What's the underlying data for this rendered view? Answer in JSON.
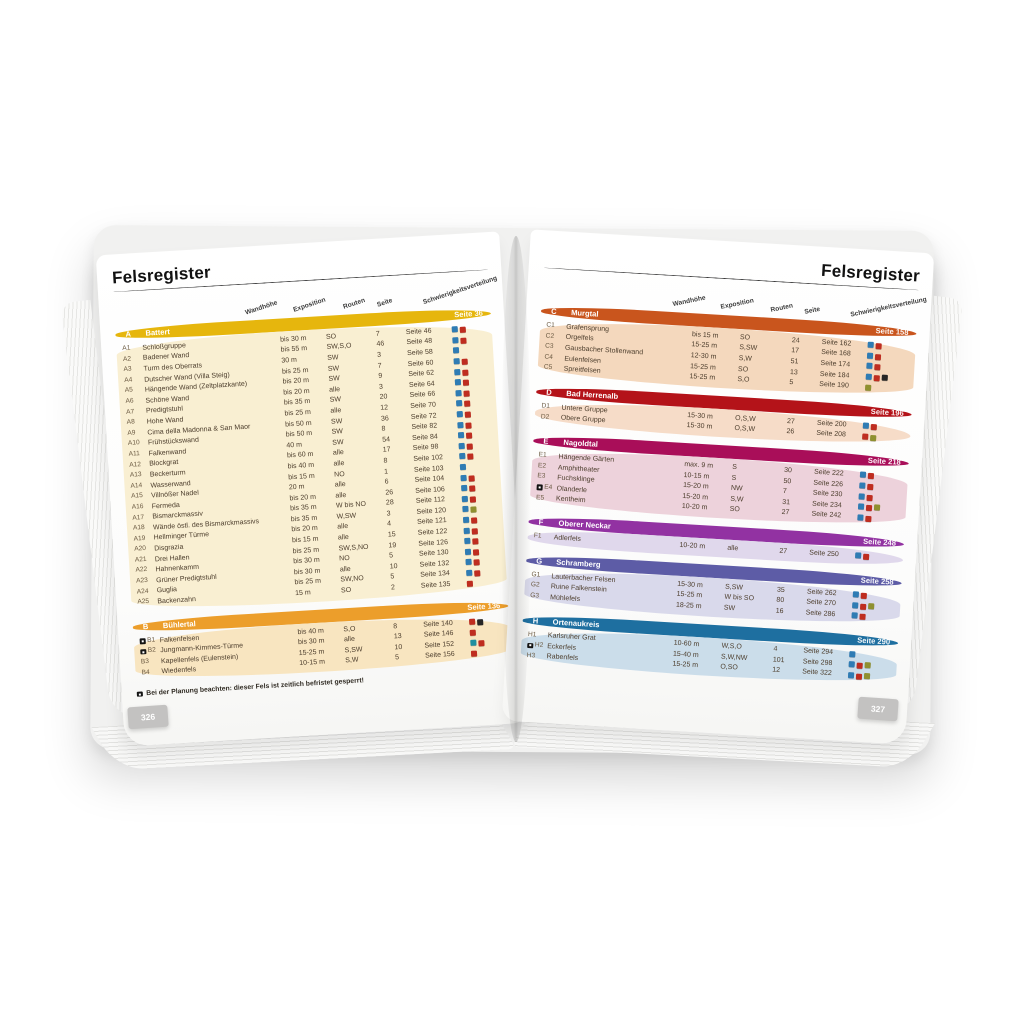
{
  "book": {
    "title_left": "Felsregister",
    "title_right": "Felsregister",
    "page_number_left": "326",
    "page_number_right": "327",
    "columns": [
      "Wandhöhe",
      "Exposition",
      "Routen",
      "Seite",
      "Schwierigkeitsverteilung"
    ],
    "footnote": "Bei der Planung beachten: dieser Fels ist zeitlich befristet gesperrt!"
  },
  "palette": {
    "difficulty": {
      "blue": "#2f7cb4",
      "red": "#bf2d20",
      "olive": "#8f9030",
      "teal": "#1f8fa0",
      "black": "#262626"
    },
    "tab_gray": "#c3c2c1"
  },
  "left_sections": [
    {
      "id": "A",
      "name": "Battert",
      "seite": "Seite 36",
      "band_color": "#e6b60d",
      "bg_color": "#f9efd2",
      "rows": [
        {
          "code": "A1",
          "name": "Schloßgruppe",
          "hoehe": "bis 30 m",
          "expo": "SO",
          "routen": "7",
          "seite": "Seite 46",
          "diff": [
            "blue",
            "red"
          ],
          "restricted": false
        },
        {
          "code": "A2",
          "name": "Badener Wand",
          "hoehe": "bis 55 m",
          "expo": "SW,S,O",
          "routen": "46",
          "seite": "Seite 48",
          "diff": [
            "blue",
            "red"
          ],
          "restricted": false
        },
        {
          "code": "A3",
          "name": "Turm des Oberrats",
          "hoehe": "30 m",
          "expo": "SW",
          "routen": "3",
          "seite": "Seite 58",
          "diff": [
            "blue"
          ],
          "restricted": false
        },
        {
          "code": "A4",
          "name": "Dutscher Wand (Villa Steig)",
          "hoehe": "bis 25 m",
          "expo": "SW",
          "routen": "7",
          "seite": "Seite 60",
          "diff": [
            "blue",
            "red"
          ],
          "restricted": false
        },
        {
          "code": "A5",
          "name": "Hängende Wand (Zeltplatzkante)",
          "hoehe": "bis 20 m",
          "expo": "SW",
          "routen": "9",
          "seite": "Seite 62",
          "diff": [
            "blue",
            "red"
          ],
          "restricted": false
        },
        {
          "code": "A6",
          "name": "Schöne Wand",
          "hoehe": "bis 20 m",
          "expo": "alle",
          "routen": "3",
          "seite": "Seite 64",
          "diff": [
            "blue",
            "red"
          ],
          "restricted": false
        },
        {
          "code": "A7",
          "name": "Predigtstuhl",
          "hoehe": "bis 35 m",
          "expo": "SW",
          "routen": "20",
          "seite": "Seite 66",
          "diff": [
            "blue",
            "red"
          ],
          "restricted": false
        },
        {
          "code": "A8",
          "name": "Hohe Wand",
          "hoehe": "bis 25 m",
          "expo": "alle",
          "routen": "12",
          "seite": "Seite 70",
          "diff": [
            "blue",
            "red"
          ],
          "restricted": false
        },
        {
          "code": "A9",
          "name": "Cima della Madonna & San Maor",
          "hoehe": "bis 50 m",
          "expo": "SW",
          "routen": "36",
          "seite": "Seite 72",
          "diff": [
            "blue",
            "red"
          ],
          "restricted": false
        },
        {
          "code": "A10",
          "name": "Frühstückswand",
          "hoehe": "bis 50 m",
          "expo": "SW",
          "routen": "8",
          "seite": "Seite 82",
          "diff": [
            "blue",
            "red"
          ],
          "restricted": false
        },
        {
          "code": "A11",
          "name": "Falkenwand",
          "hoehe": "40 m",
          "expo": "SW",
          "routen": "54",
          "seite": "Seite 84",
          "diff": [
            "blue",
            "red"
          ],
          "restricted": false
        },
        {
          "code": "A12",
          "name": "Blockgrat",
          "hoehe": "bis 60 m",
          "expo": "alle",
          "routen": "17",
          "seite": "Seite 98",
          "diff": [
            "blue",
            "red"
          ],
          "restricted": false
        },
        {
          "code": "A13",
          "name": "Beckerturm",
          "hoehe": "bis 40 m",
          "expo": "alle",
          "routen": "8",
          "seite": "Seite 102",
          "diff": [
            "blue",
            "red"
          ],
          "restricted": false
        },
        {
          "code": "A14",
          "name": "Wasserwand",
          "hoehe": "bis 15 m",
          "expo": "NO",
          "routen": "1",
          "seite": "Seite 103",
          "diff": [
            "blue"
          ],
          "restricted": false
        },
        {
          "code": "A15",
          "name": "Villnößer Nadel",
          "hoehe": "20 m",
          "expo": "alle",
          "routen": "6",
          "seite": "Seite 104",
          "diff": [
            "blue",
            "red"
          ],
          "restricted": false
        },
        {
          "code": "A16",
          "name": "Fermeda",
          "hoehe": "bis 20 m",
          "expo": "alle",
          "routen": "26",
          "seite": "Seite 106",
          "diff": [
            "blue",
            "red"
          ],
          "restricted": false
        },
        {
          "code": "A17",
          "name": "Bismarckmassiv",
          "hoehe": "bis 35 m",
          "expo": "W bis NO",
          "routen": "28",
          "seite": "Seite 112",
          "diff": [
            "blue",
            "red"
          ],
          "restricted": false
        },
        {
          "code": "A18",
          "name": "Wände östl. des Bismarckmassivs",
          "hoehe": "bis 35 m",
          "expo": "W,SW",
          "routen": "3",
          "seite": "Seite 120",
          "diff": [
            "blue",
            "olive"
          ],
          "restricted": false
        },
        {
          "code": "A19",
          "name": "Hellminger Türme",
          "hoehe": "bis 20 m",
          "expo": "alle",
          "routen": "4",
          "seite": "Seite 121",
          "diff": [
            "blue",
            "red"
          ],
          "restricted": false
        },
        {
          "code": "A20",
          "name": "Disgrazia",
          "hoehe": "bis 15 m",
          "expo": "alle",
          "routen": "15",
          "seite": "Seite 122",
          "diff": [
            "blue",
            "red"
          ],
          "restricted": false
        },
        {
          "code": "A21",
          "name": "Drei Hallen",
          "hoehe": "bis 25 m",
          "expo": "SW,S,NO",
          "routen": "19",
          "seite": "Seite 126",
          "diff": [
            "blue",
            "red"
          ],
          "restricted": false
        },
        {
          "code": "A22",
          "name": "Hahnenkamm",
          "hoehe": "bis 30 m",
          "expo": "NO",
          "routen": "5",
          "seite": "Seite 130",
          "diff": [
            "blue",
            "red"
          ],
          "restricted": false
        },
        {
          "code": "A23",
          "name": "Grüner Predigtstuhl",
          "hoehe": "bis 30 m",
          "expo": "alle",
          "routen": "10",
          "seite": "Seite 132",
          "diff": [
            "blue",
            "red"
          ],
          "restricted": false
        },
        {
          "code": "A24",
          "name": "Guglia",
          "hoehe": "bis 25 m",
          "expo": "SW,NO",
          "routen": "5",
          "seite": "Seite 134",
          "diff": [
            "blue",
            "red"
          ],
          "restricted": false
        },
        {
          "code": "A25",
          "name": "Backenzahn",
          "hoehe": "15 m",
          "expo": "SO",
          "routen": "2",
          "seite": "Seite 135",
          "diff": [
            "red"
          ],
          "restricted": false
        }
      ]
    },
    {
      "id": "B",
      "name": "Bühlertal",
      "seite": "Seite 136",
      "band_color": "#ec9e2b",
      "bg_color": "#f8e5c0",
      "rows": [
        {
          "code": "B1",
          "name": "Falkenfelsen",
          "hoehe": "bis 40 m",
          "expo": "S,O",
          "routen": "8",
          "seite": "Seite 140",
          "diff": [
            "red",
            "black"
          ],
          "restricted": true
        },
        {
          "code": "B2",
          "name": "Jungmann-Kimmes-Türme",
          "hoehe": "bis 30 m",
          "expo": "alle",
          "routen": "13",
          "seite": "Seite 146",
          "diff": [
            "red"
          ],
          "restricted": true
        },
        {
          "code": "B3",
          "name": "Kapellenfels (Eulenstein)",
          "hoehe": "15-25 m",
          "expo": "S,SW",
          "routen": "10",
          "seite": "Seite 152",
          "diff": [
            "teal",
            "red"
          ],
          "restricted": false
        },
        {
          "code": "B4",
          "name": "Wiedenfels",
          "hoehe": "10-15 m",
          "expo": "S,W",
          "routen": "5",
          "seite": "Seite 156",
          "diff": [
            "red"
          ],
          "restricted": false
        }
      ]
    }
  ],
  "right_sections": [
    {
      "id": "C",
      "name": "Murgtal",
      "seite": "Seite 158",
      "band_color": "#c9551d",
      "bg_color": "#f4d8bd",
      "rows": [
        {
          "code": "C1",
          "name": "Grafensprung",
          "hoehe": "bis 15 m",
          "expo": "SO",
          "routen": "24",
          "seite": "Seite 162",
          "diff": [
            "blue",
            "red"
          ],
          "restricted": false
        },
        {
          "code": "C2",
          "name": "Orgelfels",
          "hoehe": "15-25 m",
          "expo": "S,SW",
          "routen": "17",
          "seite": "Seite 168",
          "diff": [
            "blue",
            "red"
          ],
          "restricted": false
        },
        {
          "code": "C3",
          "name": "Gausbacher Stollenwand",
          "hoehe": "12-30 m",
          "expo": "S,W",
          "routen": "51",
          "seite": "Seite 174",
          "diff": [
            "blue",
            "red"
          ],
          "restricted": false
        },
        {
          "code": "C4",
          "name": "Eulenfelsen",
          "hoehe": "15-25 m",
          "expo": "SO",
          "routen": "13",
          "seite": "Seite 184",
          "diff": [
            "blue",
            "red",
            "black"
          ],
          "restricted": false
        },
        {
          "code": "C5",
          "name": "Spreitfelsen",
          "hoehe": "15-25 m",
          "expo": "S,O",
          "routen": "5",
          "seite": "Seite 190",
          "diff": [
            "olive"
          ],
          "restricted": false
        }
      ]
    },
    {
      "id": "D",
      "name": "Bad Herrenalb",
      "seite": "Seite 196",
      "band_color": "#b41319",
      "bg_color": "#f6dcc8",
      "rows": [
        {
          "code": "D1",
          "name": "Untere Gruppe",
          "hoehe": "15-30 m",
          "expo": "O,S,W",
          "routen": "27",
          "seite": "Seite 200",
          "diff": [
            "blue",
            "red"
          ],
          "restricted": false
        },
        {
          "code": "D2",
          "name": "Obere Gruppe",
          "hoehe": "15-30 m",
          "expo": "O,S,W",
          "routen": "26",
          "seite": "Seite 208",
          "diff": [
            "red",
            "olive"
          ],
          "restricted": false
        }
      ]
    },
    {
      "id": "E",
      "name": "Nagoldtal",
      "seite": "Seite 218",
      "band_color": "#a90e59",
      "bg_color": "#edd2db",
      "rows": [
        {
          "code": "E1",
          "name": "Hängende Gärten",
          "hoehe": "max. 9 m",
          "expo": "S",
          "routen": "30",
          "seite": "Seite 222",
          "diff": [
            "blue",
            "red"
          ],
          "restricted": false
        },
        {
          "code": "E2",
          "name": "Amphitheater",
          "hoehe": "10-15 m",
          "expo": "S",
          "routen": "50",
          "seite": "Seite 226",
          "diff": [
            "blue",
            "red"
          ],
          "restricted": false
        },
        {
          "code": "E3",
          "name": "Fuchsklinge",
          "hoehe": "15-20 m",
          "expo": "NW",
          "routen": "7",
          "seite": "Seite 230",
          "diff": [
            "blue",
            "red"
          ],
          "restricted": false
        },
        {
          "code": "E4",
          "name": "Olanderle",
          "hoehe": "15-20 m",
          "expo": "S,W",
          "routen": "31",
          "seite": "Seite 234",
          "diff": [
            "blue",
            "red",
            "olive"
          ],
          "restricted": true
        },
        {
          "code": "E5",
          "name": "Kentheim",
          "hoehe": "10-20 m",
          "expo": "SO",
          "routen": "27",
          "seite": "Seite 242",
          "diff": [
            "blue",
            "red"
          ],
          "restricted": false
        }
      ]
    },
    {
      "id": "F",
      "name": "Oberer Neckar",
      "seite": "Seite 248",
      "band_color": "#9232a2",
      "bg_color": "#e0d8ec",
      "rows": [
        {
          "code": "F1",
          "name": "Adlerfels",
          "hoehe": "10-20 m",
          "expo": "alle",
          "routen": "27",
          "seite": "Seite 250",
          "diff": [
            "blue",
            "red"
          ],
          "restricted": false
        }
      ]
    },
    {
      "id": "G",
      "name": "Schramberg",
      "seite": "Seite 258",
      "band_color": "#5d5ca6",
      "bg_color": "#d9d9eb",
      "rows": [
        {
          "code": "G1",
          "name": "Lauterbacher Felsen",
          "hoehe": "15-30 m",
          "expo": "S,SW",
          "routen": "35",
          "seite": "Seite 262",
          "diff": [
            "blue",
            "red"
          ],
          "restricted": false
        },
        {
          "code": "G2",
          "name": "Ruine Falkenstein",
          "hoehe": "15-25 m",
          "expo": "W bis SO",
          "routen": "80",
          "seite": "Seite 270",
          "diff": [
            "blue",
            "red",
            "olive"
          ],
          "restricted": false
        },
        {
          "code": "G3",
          "name": "Mühlefels",
          "hoehe": "18-25 m",
          "expo": "SW",
          "routen": "16",
          "seite": "Seite 286",
          "diff": [
            "blue",
            "red"
          ],
          "restricted": false
        }
      ]
    },
    {
      "id": "H",
      "name": "Ortenaukreis",
      "seite": "Seite 290",
      "band_color": "#1e6fa0",
      "bg_color": "#cbddea",
      "rows": [
        {
          "code": "H1",
          "name": "Karlsruher Grat",
          "hoehe": "10-60 m",
          "expo": "W,S,O",
          "routen": "4",
          "seite": "Seite 294",
          "diff": [
            "blue"
          ],
          "restricted": false
        },
        {
          "code": "H2",
          "name": "Eckerfels",
          "hoehe": "15-40 m",
          "expo": "S,W,NW",
          "routen": "101",
          "seite": "Seite 298",
          "diff": [
            "blue",
            "red",
            "olive"
          ],
          "restricted": true
        },
        {
          "code": "H3",
          "name": "Rabenfels",
          "hoehe": "15-25 m",
          "expo": "O,SO",
          "routen": "12",
          "seite": "Seite 322",
          "diff": [
            "blue",
            "red",
            "olive"
          ],
          "restricted": false
        }
      ]
    }
  ]
}
